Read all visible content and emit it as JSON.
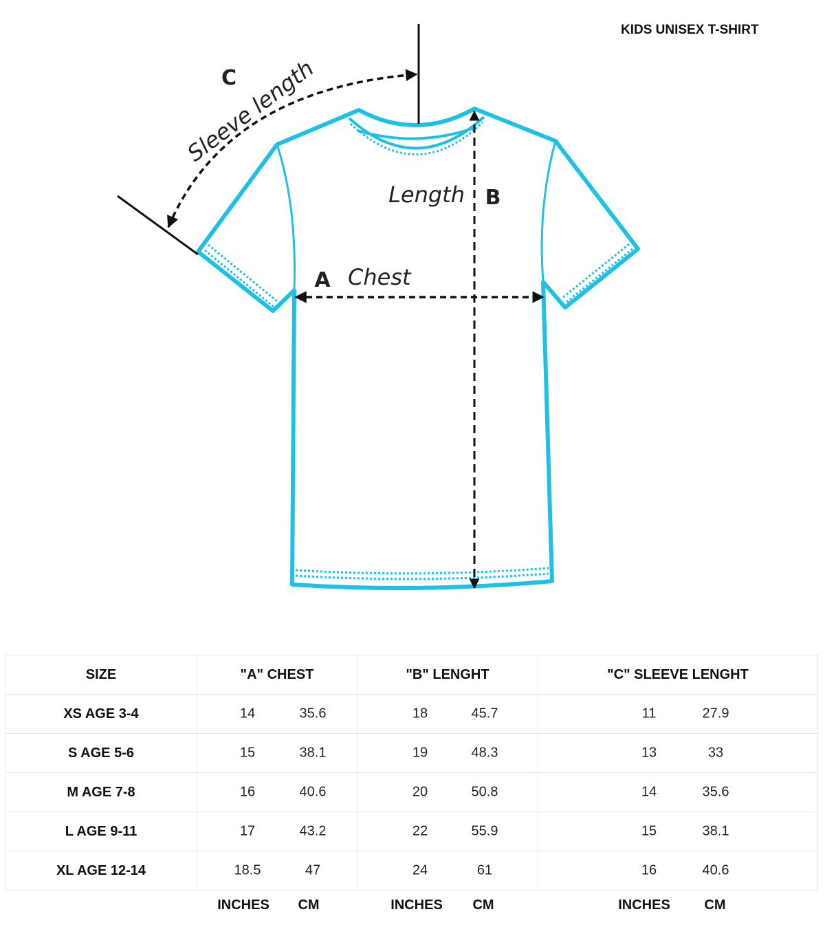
{
  "title": "KIDS UNISEX T-SHIRT",
  "colors": {
    "shirt_outline": "#1ec0e6",
    "measure_lines": "#111111"
  },
  "diagram": {
    "chest_letter": "A",
    "chest_label": "Chest",
    "length_letter": "B",
    "length_label": "Length",
    "sleeve_letter": "C",
    "sleeve_label": "Sleeve length"
  },
  "table": {
    "headers": [
      "SIZE",
      "\"A\" CHEST",
      "\"B\" LENGHT",
      "\"C\" SLEEVE LENGHT"
    ],
    "rows": [
      {
        "size": "XS AGE 3-4",
        "chest_in": "14",
        "chest_cm": "35.6",
        "length_in": "18",
        "length_cm": "45.7",
        "sleeve_in": "11",
        "sleeve_cm": "27.9"
      },
      {
        "size": "S AGE 5-6",
        "chest_in": "15",
        "chest_cm": "38.1",
        "length_in": "19",
        "length_cm": "48.3",
        "sleeve_in": "13",
        "sleeve_cm": "33"
      },
      {
        "size": "M AGE 7-8",
        "chest_in": "16",
        "chest_cm": "40.6",
        "length_in": "20",
        "length_cm": "50.8",
        "sleeve_in": "14",
        "sleeve_cm": "35.6"
      },
      {
        "size": "L AGE 9-11",
        "chest_in": "17",
        "chest_cm": "43.2",
        "length_in": "22",
        "length_cm": "55.9",
        "sleeve_in": "15",
        "sleeve_cm": "38.1"
      },
      {
        "size": "XL AGE 12-14",
        "chest_in": "18.5",
        "chest_cm": "47",
        "length_in": "24",
        "length_cm": "61",
        "sleeve_in": "16",
        "sleeve_cm": "40.6"
      }
    ],
    "units": {
      "inches": "INCHES",
      "cm": "CM"
    }
  }
}
